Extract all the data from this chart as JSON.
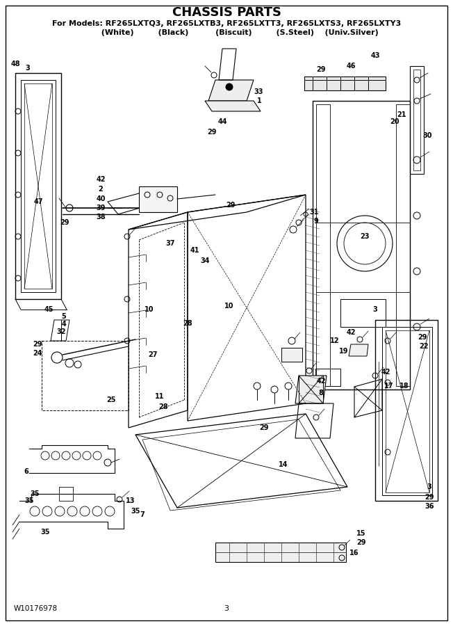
{
  "title": "CHASSIS PARTS",
  "subtitle_line1": "For Models: RF265LXTQ3, RF265LXTB3, RF265LXTT3, RF265LXTS3, RF265LXTY3",
  "subtitle_line2": "          (White)         (Black)          (Biscuit)         (S.Steel)    (Univ.Silver)",
  "footer_left": "W10176978",
  "footer_center": "3",
  "bg_color": "#ffffff",
  "border_color": "#000000",
  "line_color": "#000000",
  "title_fontsize": 13,
  "subtitle_fontsize": 8,
  "fig_width": 6.52,
  "fig_height": 9.0,
  "dpi": 100
}
